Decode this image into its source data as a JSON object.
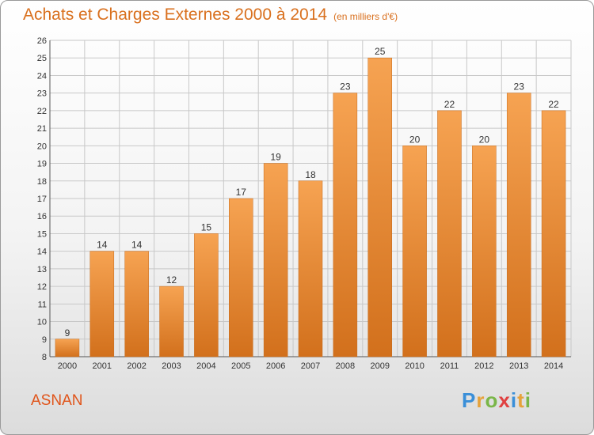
{
  "header": {
    "title": "Achats et Charges Externes 2000 à 2014",
    "subtitle": "(en milliers d'€)"
  },
  "footer": {
    "commune": "ASNAN",
    "logo_letters": [
      "P",
      "r",
      "o",
      "x",
      "i",
      "t",
      "i"
    ],
    "logo_colors": [
      "#3a8fd8",
      "#e6a23a",
      "#7ab648",
      "#e04040",
      "#3a8fd8",
      "#e6a23a",
      "#7ab648"
    ]
  },
  "colors": {
    "bar_top": "#f6a352",
    "bar_bottom": "#d2701c",
    "title": "#d9701e",
    "grid": "#c8c8c8"
  },
  "chart_data": {
    "type": "bar",
    "categories": [
      "2000",
      "2001",
      "2002",
      "2003",
      "2004",
      "2005",
      "2006",
      "2007",
      "2008",
      "2009",
      "2010",
      "2011",
      "2012",
      "2013",
      "2014"
    ],
    "values": [
      9,
      14,
      14,
      12,
      15,
      17,
      19,
      18,
      23,
      25,
      20,
      22,
      20,
      23,
      22
    ],
    "ylim": [
      8,
      26
    ],
    "yticks": [
      8,
      9,
      10,
      11,
      12,
      13,
      14,
      15,
      16,
      17,
      18,
      19,
      20,
      21,
      22,
      23,
      24,
      25,
      26
    ],
    "grid": true,
    "legend": "none"
  }
}
